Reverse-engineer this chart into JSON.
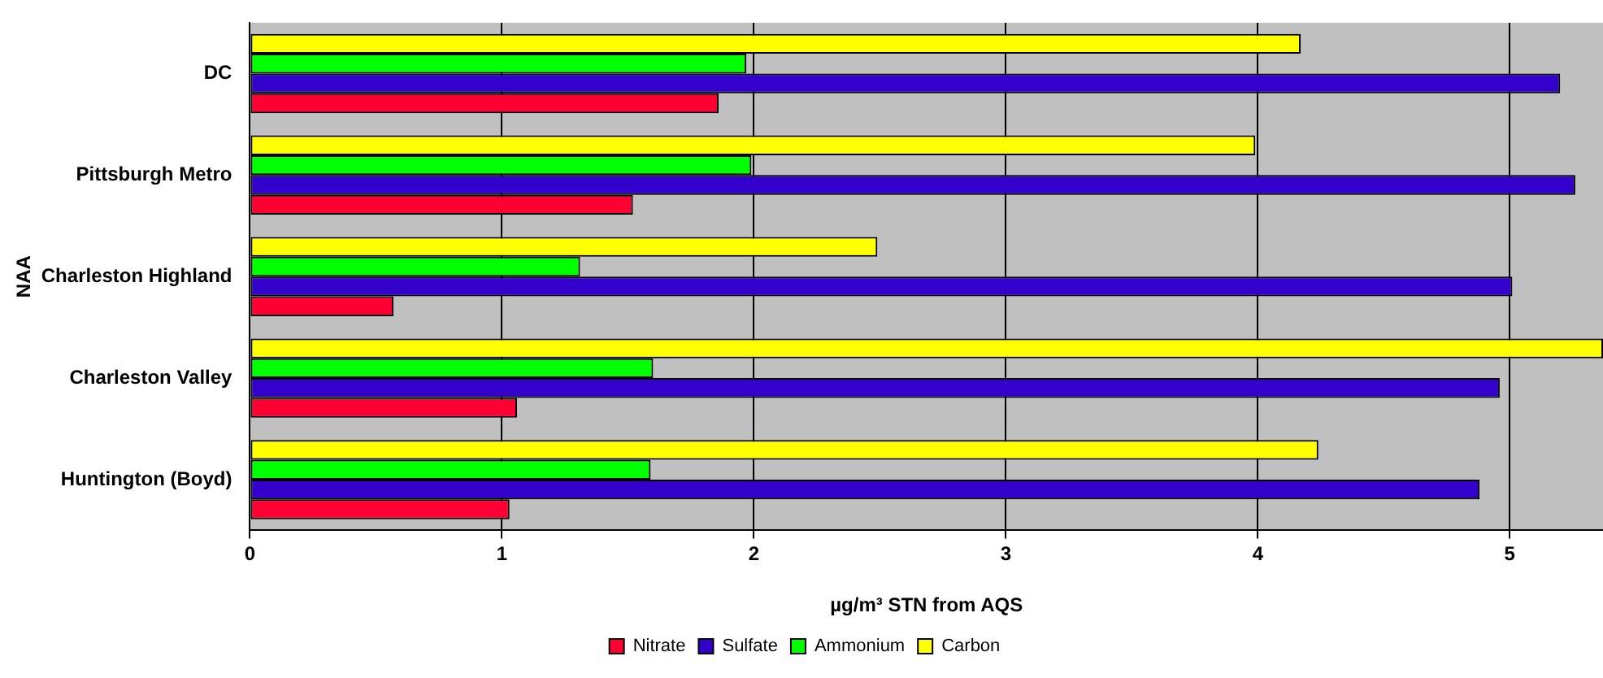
{
  "chart_data": {
    "type": "bar",
    "orientation": "horizontal",
    "xlabel": "µg/m³ STN from AQS",
    "ylabel": "NAA",
    "categories": [
      "DC",
      "Pittsburgh Metro",
      "Charleston Highland",
      "Charleston Valley",
      "Huntington (Boyd)"
    ],
    "series": [
      {
        "name": "Nitrate",
        "color": "#ff0033",
        "values": [
          1.86,
          1.52,
          0.57,
          1.06,
          1.03
        ]
      },
      {
        "name": "Sulfate",
        "color": "#3300cc",
        "values": [
          5.2,
          5.26,
          5.01,
          4.96,
          4.88
        ]
      },
      {
        "name": "Ammonium",
        "color": "#00ff00",
        "values": [
          1.97,
          1.99,
          1.31,
          1.6,
          1.59
        ]
      },
      {
        "name": "Carbon",
        "color": "#ffff00",
        "values": [
          4.17,
          3.99,
          2.49,
          5.37,
          4.24
        ]
      }
    ],
    "xlim": [
      0,
      5.37
    ],
    "xticks": [
      0,
      1,
      2,
      3,
      4,
      5
    ],
    "grid": "x",
    "legend": "bottom"
  }
}
